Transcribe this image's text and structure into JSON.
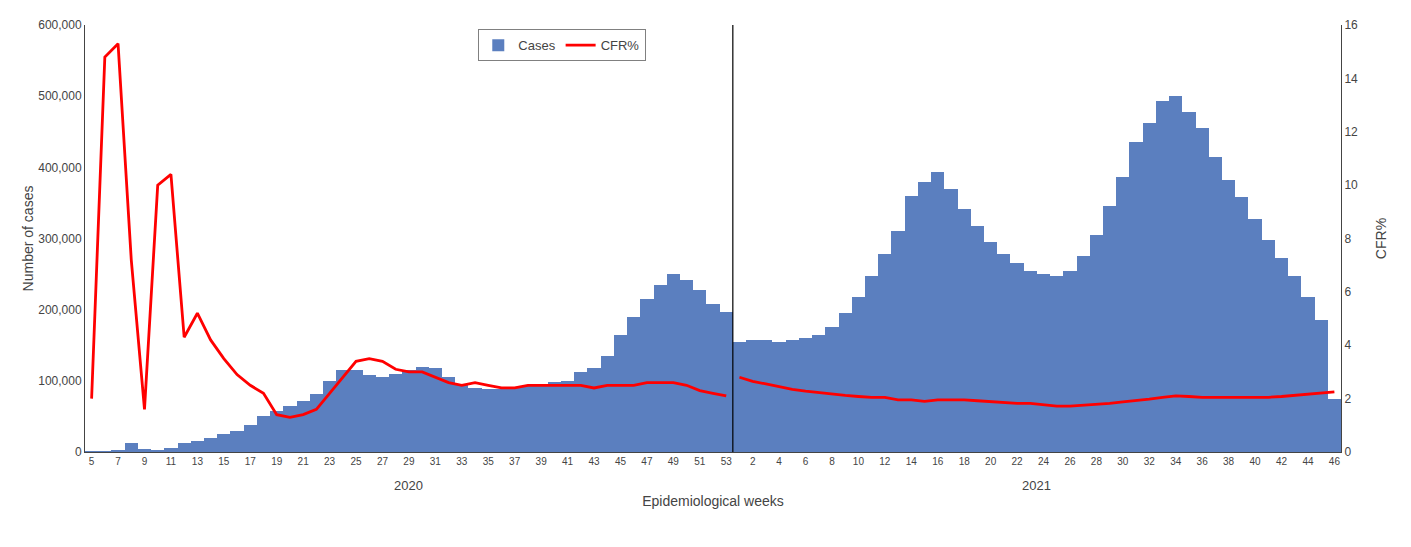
{
  "chart_data": {
    "type": "bar",
    "xlabel": "Epidemiological weeks",
    "ylabel": "Number of cases",
    "y2label": "CFR%",
    "grid": false,
    "legend": "top",
    "categories": [
      "5",
      null,
      "7",
      null,
      "9",
      null,
      "11",
      null,
      "13",
      null,
      "15",
      null,
      "17",
      null,
      "19",
      null,
      "21",
      null,
      "23",
      null,
      "25",
      null,
      "27",
      null,
      "29",
      null,
      "31",
      null,
      "33",
      null,
      "35",
      null,
      "37",
      null,
      "39",
      null,
      "41",
      null,
      "43",
      null,
      "45",
      null,
      "47",
      null,
      "49",
      null,
      "51",
      null,
      "53",
      null,
      "2",
      null,
      "4",
      null,
      "6",
      null,
      "8",
      null,
      "10",
      null,
      "12",
      null,
      "14",
      null,
      "16",
      null,
      "18",
      null,
      "20",
      null,
      "22",
      null,
      "24",
      null,
      "26",
      null,
      "28",
      null,
      "30",
      null,
      "32",
      null,
      "34",
      null,
      "36",
      null,
      "38",
      null,
      "40",
      null,
      "42",
      null,
      "44",
      null,
      "46"
    ],
    "series": [
      {
        "name": "Cases",
        "type": "bar",
        "color": "#5B7FBF",
        "values": [
          100,
          300,
          2000,
          12000,
          4000,
          2000,
          6000,
          12000,
          16000,
          20000,
          25000,
          30000,
          38000,
          50000,
          58000,
          65000,
          72000,
          82000,
          100000,
          115000,
          115000,
          108000,
          105000,
          110000,
          115000,
          120000,
          118000,
          105000,
          95000,
          90000,
          88000,
          88000,
          90000,
          93000,
          95000,
          98000,
          100000,
          112000,
          118000,
          135000,
          165000,
          190000,
          215000,
          235000,
          250000,
          242000,
          228000,
          208000,
          197000,
          155000,
          158000,
          158000,
          155000,
          158000,
          160000,
          165000,
          175000,
          195000,
          218000,
          248000,
          278000,
          310000,
          360000,
          380000,
          393000,
          370000,
          342000,
          318000,
          295000,
          278000,
          265000,
          255000,
          250000,
          248000,
          255000,
          275000,
          305000,
          345000,
          387000,
          435000,
          462000,
          493000,
          500000,
          478000,
          455000,
          415000,
          382000,
          358000,
          328000,
          298000,
          272000,
          248000,
          218000,
          185000,
          75000
        ]
      },
      {
        "name": "CFR%",
        "type": "line",
        "axis": "y2",
        "color": "#FF0000",
        "values": [
          2.0,
          14.8,
          15.3,
          7.2,
          1.6,
          10.0,
          10.4,
          4.3,
          5.2,
          4.2,
          3.5,
          2.9,
          2.5,
          2.2,
          1.4,
          1.3,
          1.4,
          1.6,
          2.2,
          2.8,
          3.4,
          3.5,
          3.4,
          3.1,
          3.0,
          3.0,
          2.8,
          2.6,
          2.5,
          2.6,
          2.5,
          2.4,
          2.4,
          2.5,
          2.5,
          2.5,
          2.5,
          2.5,
          2.4,
          2.5,
          2.5,
          2.5,
          2.6,
          2.6,
          2.6,
          2.5,
          2.3,
          2.2,
          2.1,
          null,
          null,
          null,
          null,
          null,
          null,
          null,
          null,
          null,
          null,
          null,
          null,
          null,
          null,
          null,
          null,
          null,
          null,
          null,
          null,
          null,
          null,
          null,
          null,
          null,
          null,
          null,
          null,
          null,
          null,
          null,
          null,
          null,
          null,
          null,
          null,
          null,
          null,
          null,
          null,
          null,
          null,
          null,
          null,
          null,
          null
        ]
      },
      {
        "name": "CFR%",
        "type": "line",
        "axis": "y2",
        "color": "#FF0000",
        "values": [
          null,
          null,
          null,
          null,
          null,
          null,
          null,
          null,
          null,
          null,
          null,
          null,
          null,
          null,
          null,
          null,
          null,
          null,
          null,
          null,
          null,
          null,
          null,
          null,
          null,
          null,
          null,
          null,
          null,
          null,
          null,
          null,
          null,
          null,
          null,
          null,
          null,
          null,
          null,
          null,
          null,
          null,
          null,
          null,
          null,
          null,
          null,
          null,
          null,
          2.8,
          2.65,
          2.55,
          2.45,
          2.35,
          2.28,
          2.22,
          2.18,
          2.12,
          2.08,
          2.05,
          2.05,
          1.95,
          1.95,
          1.9,
          1.95,
          1.95,
          1.95,
          1.92,
          1.88,
          1.85,
          1.82,
          1.82,
          1.78,
          1.72,
          1.72,
          1.75,
          1.78,
          1.82,
          1.88,
          1.92,
          1.98,
          2.05,
          2.1,
          2.08,
          2.05,
          2.05,
          2.05,
          2.05,
          2.05,
          2.05,
          2.08,
          2.12,
          2.15,
          2.2,
          2.25
        ]
      }
    ],
    "annotations": [
      {
        "text": "2020"
      },
      {
        "text": "2021"
      }
    ],
    "ylim": [
      0,
      600000
    ],
    "yticks": [
      0,
      {
        "value": 100000,
        "label": "100,000"
      },
      {
        "value": 200000,
        "label": "200,000"
      },
      {
        "value": 300000,
        "label": "300,000"
      },
      {
        "value": 400000,
        "label": "400,000"
      },
      {
        "value": 500000,
        "label": "500,000"
      },
      {
        "value": 600000,
        "label": "600,000"
      }
    ],
    "y2lim": [
      0,
      16
    ],
    "y2ticks": [
      0,
      2,
      4,
      6,
      8,
      10,
      12,
      14,
      16
    ]
  }
}
